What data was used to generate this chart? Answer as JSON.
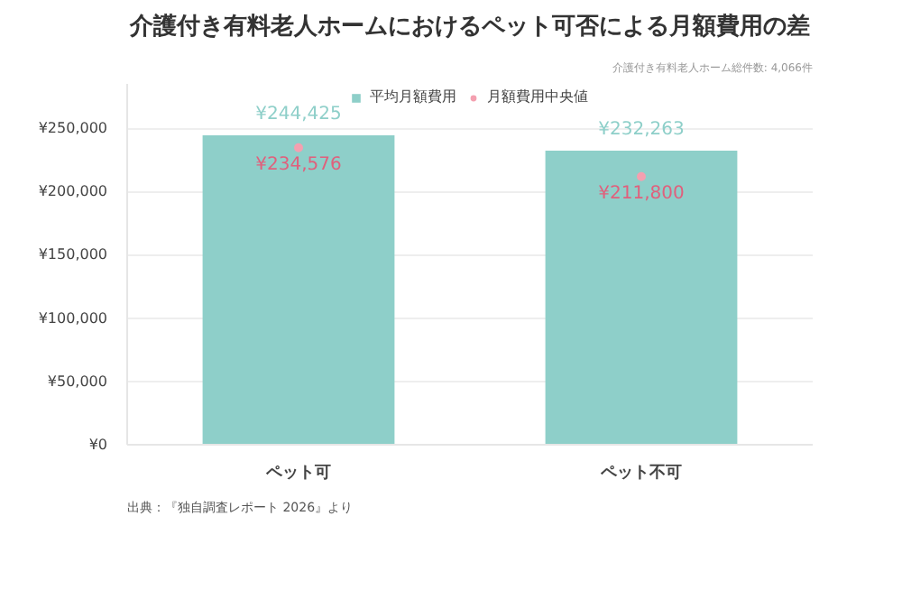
{
  "chart_data": {
    "type": "bar",
    "title": "介護付き有料老人ホームにおけるペット可否による月額費用の差",
    "subtitle": "介護付き有料老人ホーム総件数: 4,066件",
    "categories": [
      "ペット可",
      "ペット不可"
    ],
    "series": [
      {
        "name": "平均月額費用",
        "color": "#8ecfc9",
        "values": [
          244425,
          232263
        ],
        "value_labels": [
          "¥244,425",
          "¥232,263"
        ]
      },
      {
        "name": "月額費用中央値",
        "type": "scatter",
        "color": "#f4a0b0",
        "x": [
          "ペット可",
          "ペット不可"
        ],
        "values": [
          234576,
          211800
        ],
        "value_labels": [
          "¥234,576",
          "¥211,800"
        ]
      }
    ],
    "ylim": [
      0,
      285000
    ],
    "yticks": [
      {
        "value": 0,
        "label": "¥0"
      },
      {
        "value": 50000,
        "label": "¥50,000"
      },
      {
        "value": 100000,
        "label": "¥100,000"
      },
      {
        "value": 150000,
        "label": "¥150,000"
      },
      {
        "value": 200000,
        "label": "¥200,000"
      },
      {
        "value": 250000,
        "label": "¥250,000"
      }
    ],
    "grid": "y",
    "legend": "top",
    "marker": "circle",
    "annotations": [
      "出典：『独自調査レポート 2026』より"
    ]
  }
}
